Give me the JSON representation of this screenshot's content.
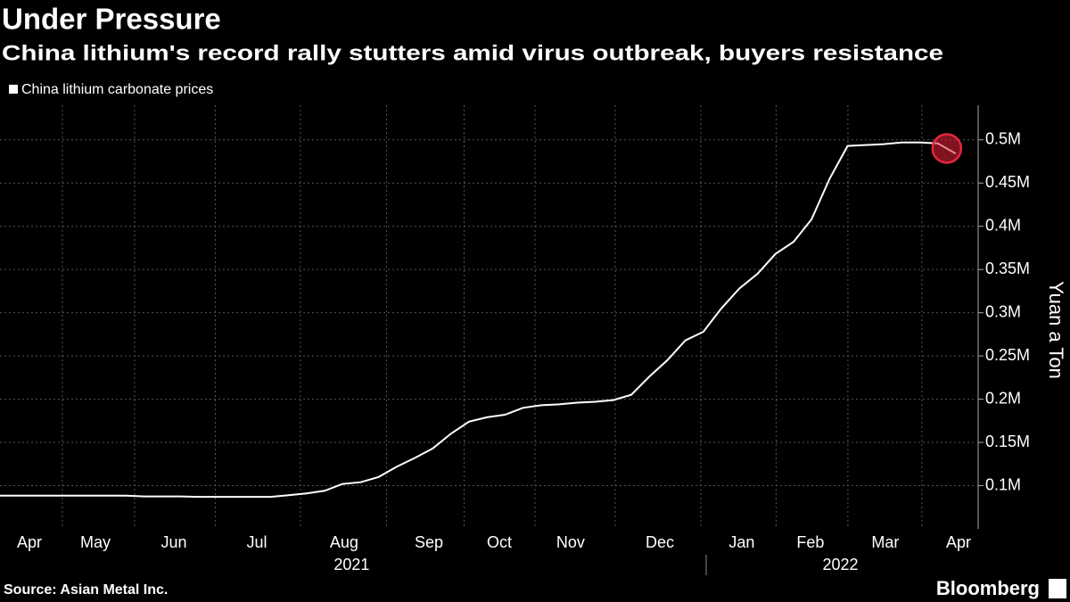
{
  "chart_data": {
    "type": "line",
    "title": "Under Pressure",
    "subtitle": "China lithium's record rally stutters amid virus outbreak, buyers resistance",
    "y_label": "Yuan a Ton",
    "source": "Source: Asian Metal Inc.",
    "brand": "Bloomberg",
    "series": [
      {
        "name": "China lithium carbonate prices",
        "color": "#ffffff",
        "values": [
          88500,
          88500,
          88500,
          88500,
          88500,
          88500,
          88500,
          88500,
          87500,
          87500,
          87500,
          87000,
          87000,
          87000,
          87000,
          87000,
          89000,
          91000,
          94000,
          102000,
          104000,
          110000,
          122000,
          132000,
          143000,
          160000,
          174000,
          179000,
          182000,
          190000,
          193000,
          194000,
          196000,
          197000,
          199000,
          205000,
          226000,
          245000,
          268000,
          278000,
          305000,
          328000,
          345000,
          368000,
          382000,
          408000,
          455000,
          493000,
          494000,
          495000,
          497000,
          497000,
          496000,
          484000
        ]
      }
    ],
    "xlim": [
      0,
      54.14
    ],
    "xticks": [
      {
        "value": 1.63,
        "label": "Apr"
      },
      {
        "value": 5.29,
        "label": "May"
      },
      {
        "value": 9.64,
        "label": "Jun"
      },
      {
        "value": 14.24,
        "label": "Jul"
      },
      {
        "value": 19.08,
        "label": "Aug"
      },
      {
        "value": 23.78,
        "label": "Sep"
      },
      {
        "value": 27.69,
        "label": "Oct"
      },
      {
        "value": 31.64,
        "label": "Nov"
      },
      {
        "value": 36.59,
        "label": "Dec"
      },
      {
        "value": 41.13,
        "label": "Jan"
      },
      {
        "value": 44.94,
        "label": "Feb"
      },
      {
        "value": 49.09,
        "label": "Mar"
      },
      {
        "value": 53.15,
        "label": "Apr"
      }
    ],
    "years": [
      {
        "value": 19.5,
        "label": "2021"
      },
      {
        "value": 46.6,
        "label": "2022"
      }
    ],
    "ylim": [
      50000,
      540000
    ],
    "yticks": [
      {
        "value": 100000,
        "label": "0.1M"
      },
      {
        "value": 150000,
        "label": "0.15M"
      },
      {
        "value": 200000,
        "label": "0.2M"
      },
      {
        "value": 250000,
        "label": "0.25M"
      },
      {
        "value": 300000,
        "label": "0.3M"
      },
      {
        "value": 350000,
        "label": "0.35M"
      },
      {
        "value": 400000,
        "label": "0.4M"
      },
      {
        "value": 450000,
        "label": "0.45M"
      },
      {
        "value": 500000,
        "label": "0.5M"
      }
    ],
    "grid": true,
    "highlight_color": "#e8253a"
  }
}
